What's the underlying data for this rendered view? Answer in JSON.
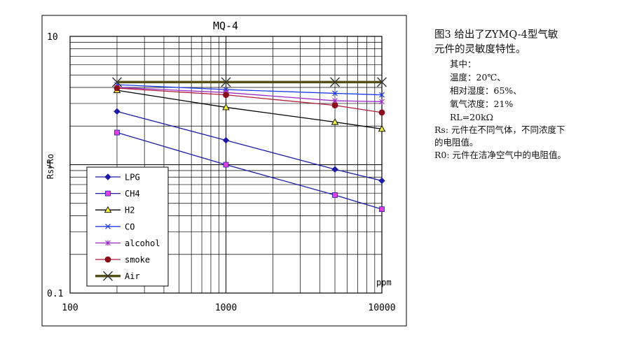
{
  "chart_data": {
    "type": "line",
    "title": "MQ-4",
    "xlabel": "",
    "x_unit_label": "ppm",
    "ylabel": "Rs/Ro",
    "x_scale": "log",
    "y_scale": "log",
    "xlim": [
      100,
      10000
    ],
    "ylim": [
      0.1,
      10
    ],
    "x_ticks": [
      "100",
      "1000",
      "10000"
    ],
    "y_ticks": [
      "10",
      "1",
      "0.1"
    ],
    "grid": true,
    "legend_position": "bottom-left",
    "x": [
      200,
      1000,
      5000,
      10000
    ],
    "series": [
      {
        "name": "LPG",
        "marker": "diamond",
        "color": "#1c1ca8",
        "values": [
          2.6,
          1.55,
          0.92,
          0.75
        ]
      },
      {
        "name": "CH4",
        "marker": "square",
        "color": "#1c1ca8",
        "marker_color": "#e040e0",
        "values": [
          1.78,
          1.0,
          0.58,
          0.45
        ]
      },
      {
        "name": "H2",
        "marker": "triangle",
        "color": "#000000",
        "marker_color": "#f2f23a",
        "values": [
          3.8,
          2.8,
          2.15,
          1.9
        ]
      },
      {
        "name": "CO",
        "marker": "x",
        "color": "#1f3cf0",
        "values": [
          4.2,
          3.85,
          3.6,
          3.5
        ]
      },
      {
        "name": "alcohol",
        "marker": "star",
        "color": "#9a2ac8",
        "values": [
          4.0,
          3.65,
          3.15,
          3.1
        ]
      },
      {
        "name": "smoke",
        "marker": "circle",
        "color": "#b01c3c",
        "marker_color": "#8c0a1a",
        "values": [
          3.95,
          3.5,
          2.9,
          2.55
        ]
      },
      {
        "name": "Air",
        "marker": "x-large",
        "color": "#555015",
        "values": [
          4.4,
          4.4,
          4.4,
          4.4
        ]
      }
    ]
  },
  "note": {
    "heading_lines": [
      "图3 给出了ZYMQ-4型气敏",
      "元件的灵敏度特性。"
    ],
    "conditions_label": "其中：",
    "conditions": [
      "温度：20℃、",
      "相对湿度：65%、",
      "氧气浓度：21%",
      "RL=20kΩ"
    ],
    "rs_desc_lines": [
      "Rs: 元件在不同气体，不同浓度下",
      "的电阻值。"
    ],
    "r0_desc": "R0: 元件在洁净空气中的电阻值。"
  }
}
